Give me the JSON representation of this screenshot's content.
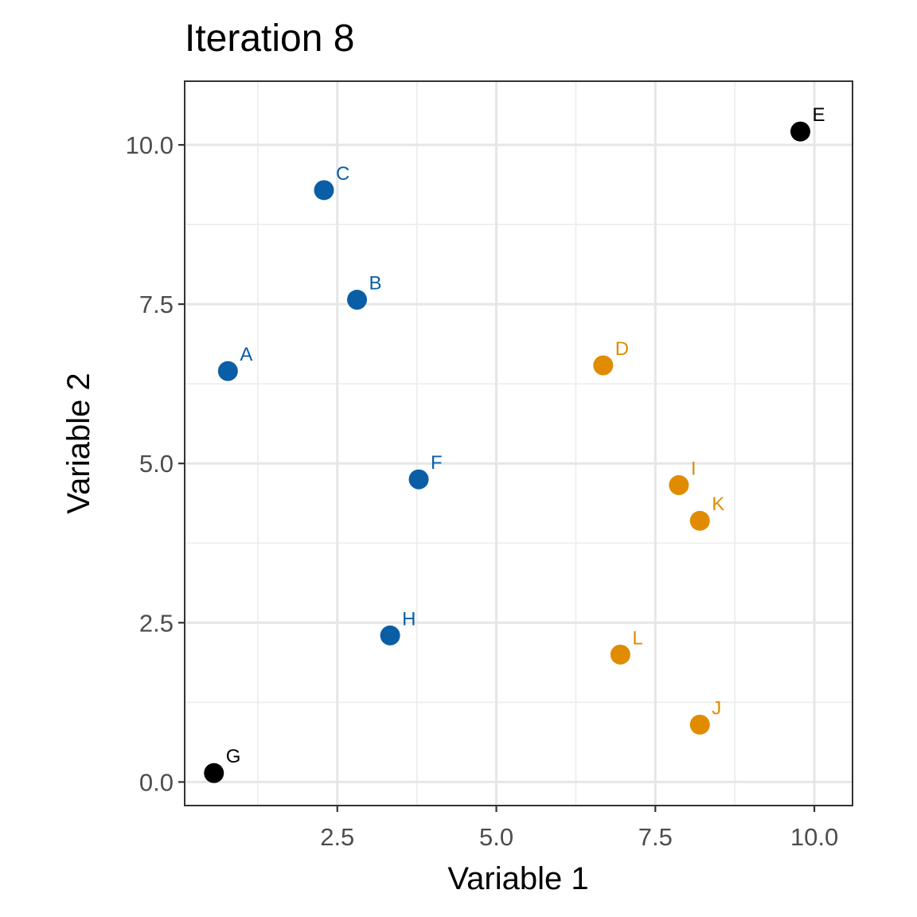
{
  "chart_data": {
    "type": "scatter",
    "title": "Iteration 8",
    "xlabel": "Variable 1",
    "ylabel": "Variable 2",
    "xlim": [
      0.1,
      10.6
    ],
    "ylim": [
      -0.37,
      11.0
    ],
    "x_ticks": [
      2.5,
      5.0,
      7.5,
      10.0
    ],
    "x_tick_labels": [
      "2.5",
      "5.0",
      "7.5",
      "10.0"
    ],
    "y_ticks": [
      0.0,
      2.5,
      5.0,
      7.5,
      10.0
    ],
    "y_tick_labels": [
      "0.0",
      "2.5",
      "5.0",
      "7.5",
      "10.0"
    ],
    "grid": true,
    "legend": "none",
    "colors": {
      "blue": "#0a5ea6",
      "orange": "#e08b00",
      "black": "#000000"
    },
    "points": [
      {
        "label": "A",
        "x": 0.78,
        "y": 6.45,
        "color": "blue"
      },
      {
        "label": "B",
        "x": 2.81,
        "y": 7.57,
        "color": "blue"
      },
      {
        "label": "C",
        "x": 2.29,
        "y": 9.29,
        "color": "blue"
      },
      {
        "label": "D",
        "x": 6.68,
        "y": 6.54,
        "color": "orange"
      },
      {
        "label": "E",
        "x": 9.78,
        "y": 10.21,
        "color": "black"
      },
      {
        "label": "F",
        "x": 3.78,
        "y": 4.75,
        "color": "blue"
      },
      {
        "label": "G",
        "x": 0.56,
        "y": 0.14,
        "color": "black"
      },
      {
        "label": "H",
        "x": 3.33,
        "y": 2.3,
        "color": "blue"
      },
      {
        "label": "I",
        "x": 7.87,
        "y": 4.66,
        "color": "orange"
      },
      {
        "label": "J",
        "x": 8.2,
        "y": 0.9,
        "color": "orange"
      },
      {
        "label": "K",
        "x": 8.2,
        "y": 4.1,
        "color": "orange"
      },
      {
        "label": "L",
        "x": 6.95,
        "y": 2.0,
        "color": "orange"
      }
    ]
  }
}
